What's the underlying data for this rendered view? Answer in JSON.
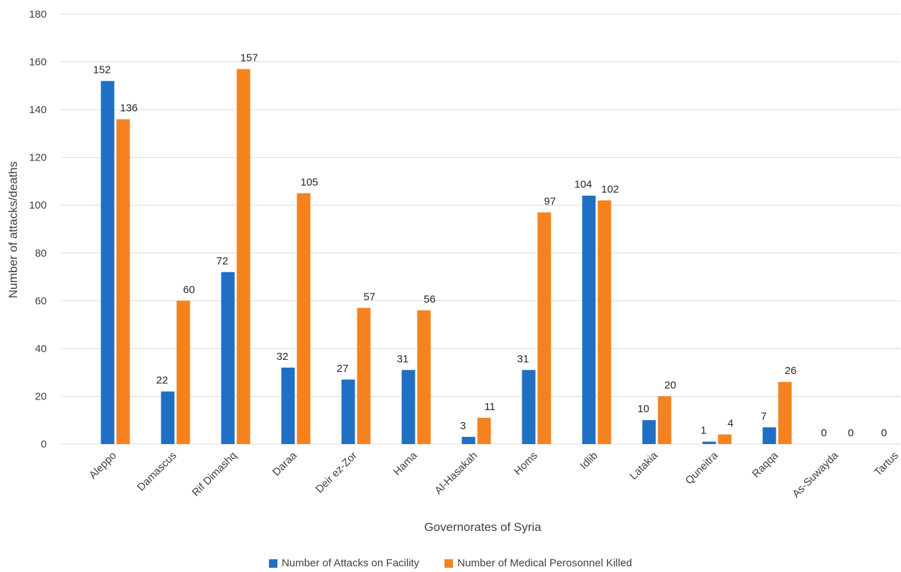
{
  "chart_data": {
    "type": "bar",
    "xlabel": "Governorates of Syria",
    "ylabel": "Number of attacks/deaths",
    "ylim": [
      0,
      180
    ],
    "yticks": [
      0,
      20,
      40,
      60,
      80,
      100,
      120,
      140,
      160,
      180
    ],
    "grid": true,
    "legend_position": "bottom",
    "categories": [
      "Aleppo",
      "Damascus",
      "Rif Dimashq",
      "Daraa",
      "Deir ez-Zor",
      "Hama",
      "Al-Hasakah",
      "Homs",
      "Idlib",
      "Latakia",
      "Quneitra",
      "Raqqa",
      "As-Suwayda",
      "Tartus"
    ],
    "series": [
      {
        "name": "Number of Attacks on Facility",
        "color": "#1f6fc5",
        "values": [
          152,
          22,
          72,
          32,
          27,
          31,
          3,
          31,
          104,
          10,
          1,
          7,
          0,
          0
        ]
      },
      {
        "name": "Number of Medical Perosonnel Killed",
        "color": "#f5821f",
        "values": [
          136,
          60,
          157,
          105,
          57,
          56,
          11,
          97,
          102,
          20,
          4,
          26,
          0,
          0
        ]
      }
    ]
  }
}
